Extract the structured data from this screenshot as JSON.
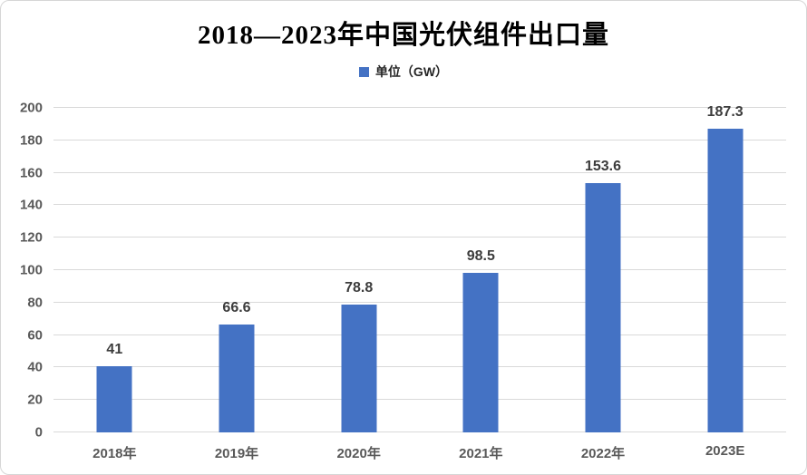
{
  "chart": {
    "title": "2018—2023年中国光伏组件出口量",
    "legend": {
      "label": "单位（GW）",
      "swatch_color": "#4472C4"
    }
  },
  "chart_data": {
    "type": "bar",
    "title": "2018—2023年中国光伏组件出口量",
    "categories": [
      "2018年",
      "2019年",
      "2020年",
      "2021年",
      "2022年",
      "2023E"
    ],
    "values": [
      41,
      66.6,
      78.8,
      98.5,
      153.6,
      187.3
    ],
    "value_labels": [
      "41",
      "66.6",
      "78.8",
      "98.5",
      "153.6",
      "187.3"
    ],
    "legend_entries": [
      "单位（GW）"
    ],
    "legend_position": "top",
    "xlabel": "",
    "ylabel": "",
    "ylim": [
      0,
      200
    ],
    "yticks": [
      0,
      20,
      40,
      60,
      80,
      100,
      120,
      140,
      160,
      180,
      200
    ],
    "grid": true,
    "bar_color": "#4472C4",
    "gridline_color": "#d9d9d9",
    "tick_label_color": "#595959",
    "data_label_color": "#3c3c3c"
  }
}
